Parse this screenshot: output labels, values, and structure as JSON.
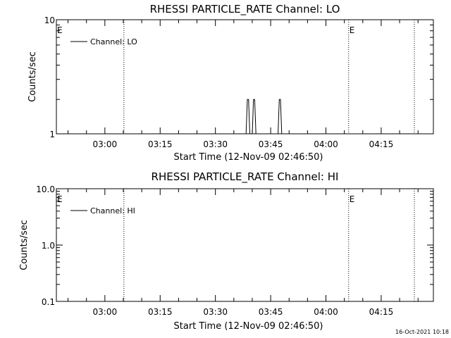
{
  "footer": {
    "timestamp": "16-Oct-2021 10:18"
  },
  "chart_data": [
    {
      "type": "line",
      "title": "RHESSI PARTICLE_RATE Channel: LO",
      "xlabel": "Start Time (12-Nov-09 02:46:50)",
      "ylabel": "Counts/sec",
      "yscale": "log",
      "ylim": [
        1,
        10
      ],
      "ytick_labels": [
        "1",
        "10"
      ],
      "xlim": [
        "02:46:50",
        "04:29:10"
      ],
      "xtick_labels": [
        "03:00",
        "03:15",
        "03:30",
        "03:45",
        "04:00",
        "04:15"
      ],
      "legend": {
        "placement": "top-left",
        "entries": [
          "Channel: LO"
        ]
      },
      "event_lines": [
        "03:05:10",
        "04:06:10",
        "04:24:00"
      ],
      "event_markers": [
        {
          "label": "E",
          "x": "02:46:50"
        },
        {
          "label": "E",
          "x": "04:06:10"
        }
      ],
      "series": [
        {
          "name": "Channel: LO",
          "color": "#000000",
          "points": [
            [
              "03:38:20",
              1
            ],
            [
              "03:38:40",
              2
            ],
            [
              "03:39:00",
              2
            ],
            [
              "03:39:20",
              1
            ],
            [
              "03:40:00",
              1
            ],
            [
              "03:40:20",
              2
            ],
            [
              "03:40:40",
              2
            ],
            [
              "03:41:00",
              1
            ],
            [
              "03:47:00",
              1
            ],
            [
              "03:47:20",
              2
            ],
            [
              "03:47:40",
              2
            ],
            [
              "03:48:00",
              1
            ]
          ]
        }
      ]
    },
    {
      "type": "line",
      "title": "RHESSI PARTICLE_RATE Channel: HI",
      "xlabel": "Start Time (12-Nov-09 02:46:50)",
      "ylabel": "Counts/sec",
      "yscale": "log",
      "ylim": [
        0.1,
        10
      ],
      "ytick_labels": [
        "0.1",
        "1.0",
        "10.0"
      ],
      "xlim": [
        "02:46:50",
        "04:29:10"
      ],
      "xtick_labels": [
        "03:00",
        "03:15",
        "03:30",
        "03:45",
        "04:00",
        "04:15"
      ],
      "legend": {
        "placement": "top-left",
        "entries": [
          "Channel: HI"
        ]
      },
      "event_lines": [
        "03:05:10",
        "04:06:10",
        "04:24:00"
      ],
      "event_markers": [
        {
          "label": "E",
          "x": "02:46:50"
        },
        {
          "label": "E",
          "x": "04:06:10"
        }
      ],
      "series": [
        {
          "name": "Channel: HI",
          "color": "#000000",
          "points": []
        }
      ]
    }
  ]
}
